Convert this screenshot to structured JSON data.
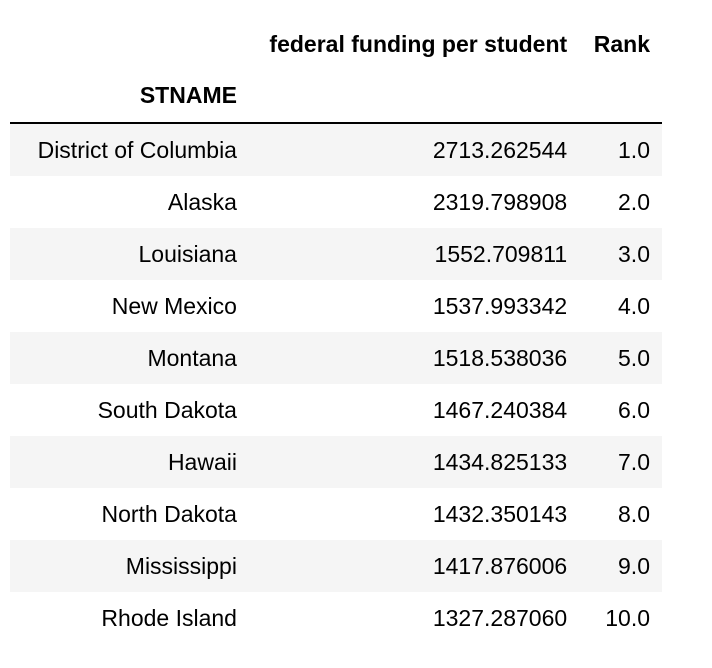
{
  "columns": {
    "funding_label": "federal funding per student",
    "rank_label": "Rank"
  },
  "index_name": "STNAME",
  "rows": [
    {
      "state": "District of Columbia",
      "funding": "2713.262544",
      "rank": "1.0"
    },
    {
      "state": "Alaska",
      "funding": "2319.798908",
      "rank": "2.0"
    },
    {
      "state": "Louisiana",
      "funding": "1552.709811",
      "rank": "3.0"
    },
    {
      "state": "New Mexico",
      "funding": "1537.993342",
      "rank": "4.0"
    },
    {
      "state": "Montana",
      "funding": "1518.538036",
      "rank": "5.0"
    },
    {
      "state": "South Dakota",
      "funding": "1467.240384",
      "rank": "6.0"
    },
    {
      "state": "Hawaii",
      "funding": "1434.825133",
      "rank": "7.0"
    },
    {
      "state": "North Dakota",
      "funding": "1432.350143",
      "rank": "8.0"
    },
    {
      "state": "Mississippi",
      "funding": "1417.876006",
      "rank": "9.0"
    },
    {
      "state": "Rhode Island",
      "funding": "1327.287060",
      "rank": "10.0"
    }
  ]
}
